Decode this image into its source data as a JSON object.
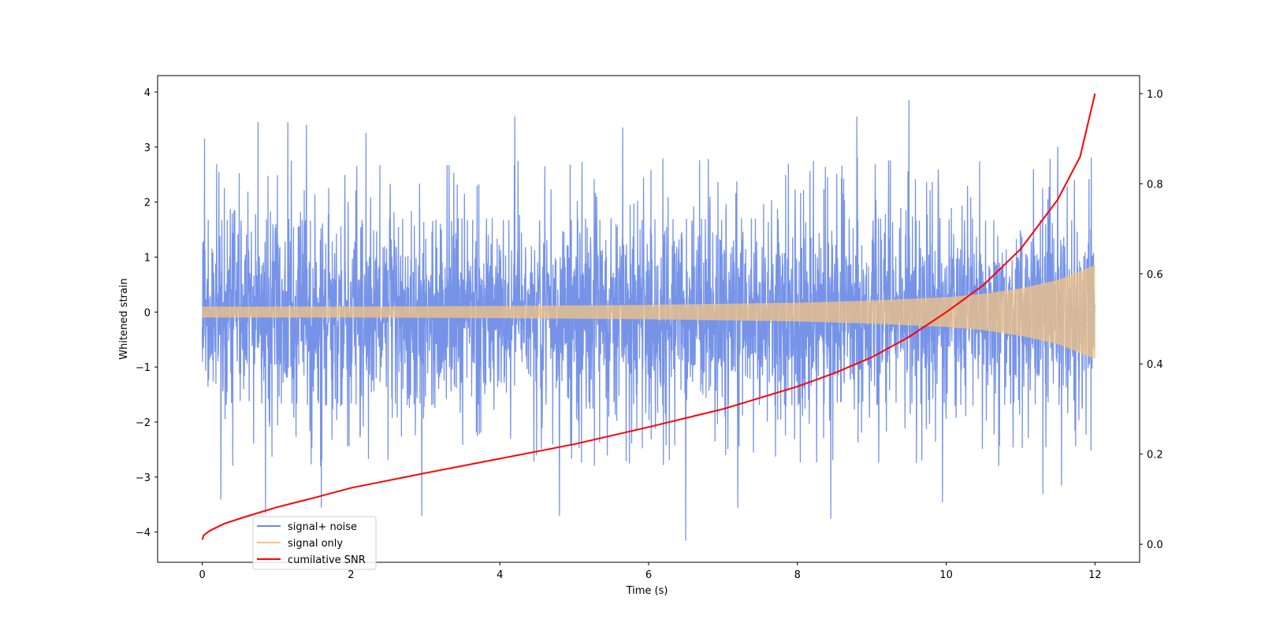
{
  "chart_data": {
    "type": "line",
    "title": "",
    "xlabel": "Time (s)",
    "ylabel": "Whitened strain",
    "y2label": "",
    "xlim": [
      -0.6,
      12.6
    ],
    "ylim": [
      -4.55,
      4.3
    ],
    "y2lim": [
      -0.04,
      1.04
    ],
    "xticks": [
      0,
      2,
      4,
      6,
      8,
      10,
      12
    ],
    "xtick_labels": [
      "0",
      "2",
      "4",
      "6",
      "8",
      "10",
      "12"
    ],
    "yticks": [
      4,
      3,
      2,
      1,
      0,
      -1,
      -2,
      -3,
      -4
    ],
    "ytick_labels": [
      "4",
      "3",
      "2",
      "1",
      "0",
      "−1",
      "−2",
      "−3",
      "−4"
    ],
    "y2ticks": [
      1.0,
      0.8,
      0.6,
      0.4,
      0.2,
      0.0
    ],
    "y2tick_labels": [
      "1.0",
      "0.8",
      "0.6",
      "0.4",
      "0.2",
      "0.0"
    ],
    "grid": false,
    "legend_position": "lower-left",
    "series": [
      {
        "name": "signal+ noise",
        "axis": "left",
        "color": "#6a8ae6",
        "description_of_trace": "dense noise oscillation, approx. ±1.7 typical, spikes to ±4",
        "t_range": [
          0,
          12
        ],
        "typical_abs": 1.7,
        "max": 3.85,
        "min": -4.15,
        "peaks": [
          {
            "x": 0.03,
            "y": 3.15
          },
          {
            "x": 0.75,
            "y": 3.45
          },
          {
            "x": 1.15,
            "y": 3.45
          },
          {
            "x": 1.4,
            "y": 3.4
          },
          {
            "x": 2.2,
            "y": 3.25
          },
          {
            "x": 4.2,
            "y": 3.55
          },
          {
            "x": 5.65,
            "y": 3.35
          },
          {
            "x": 8.8,
            "y": 3.55
          },
          {
            "x": 9.5,
            "y": 3.85
          },
          {
            "x": 11.5,
            "y": 3.0
          },
          {
            "x": 11.95,
            "y": 2.8
          }
        ],
        "troughs": [
          {
            "x": 0.25,
            "y": -3.4
          },
          {
            "x": 0.85,
            "y": -3.65
          },
          {
            "x": 1.6,
            "y": -3.55
          },
          {
            "x": 2.95,
            "y": -3.7
          },
          {
            "x": 4.8,
            "y": -3.7
          },
          {
            "x": 6.5,
            "y": -4.15
          },
          {
            "x": 7.2,
            "y": -3.55
          },
          {
            "x": 8.45,
            "y": -3.75
          },
          {
            "x": 9.95,
            "y": -3.45
          },
          {
            "x": 11.3,
            "y": -3.3
          },
          {
            "x": 11.55,
            "y": -3.15
          }
        ]
      },
      {
        "name": "signal only",
        "axis": "left",
        "color": "#f4c483",
        "alpha": 0.75,
        "t_range": [
          0,
          12
        ],
        "envelope": {
          "x": [
            0,
            2,
            4,
            6,
            8,
            9,
            10,
            10.5,
            11,
            11.5,
            12
          ],
          "amp": [
            0.1,
            0.1,
            0.11,
            0.13,
            0.17,
            0.21,
            0.27,
            0.33,
            0.43,
            0.58,
            0.85
          ]
        }
      },
      {
        "name": "cumilative SNR",
        "axis": "right",
        "color": "#ff0000",
        "x": [
          0,
          0.02,
          0.1,
          0.3,
          0.6,
          1,
          1.5,
          2,
          3,
          4,
          5,
          6,
          7,
          8,
          8.5,
          9,
          9.5,
          10,
          10.5,
          11,
          11.5,
          11.8,
          12
        ],
        "values": [
          0.01,
          0.02,
          0.03,
          0.046,
          0.062,
          0.082,
          0.103,
          0.125,
          0.158,
          0.19,
          0.222,
          0.26,
          0.3,
          0.35,
          0.38,
          0.415,
          0.46,
          0.515,
          0.575,
          0.655,
          0.765,
          0.86,
          1.0
        ]
      }
    ]
  }
}
